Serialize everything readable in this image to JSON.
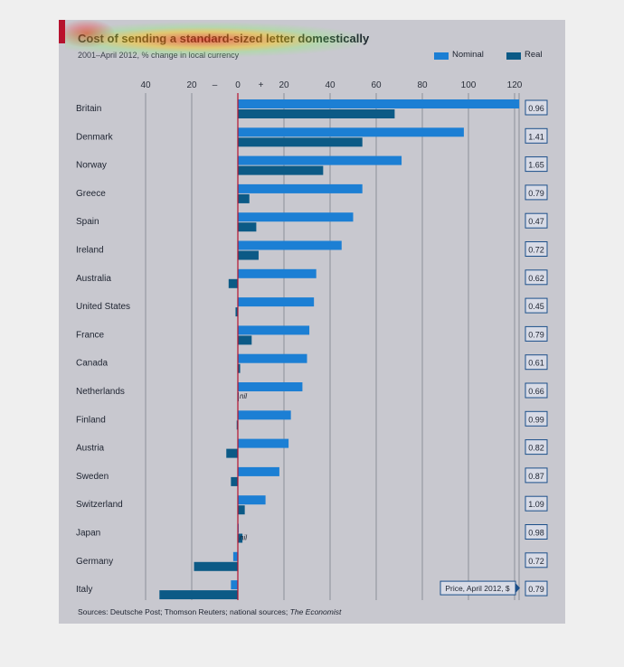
{
  "chart_data": {
    "type": "bar",
    "title": "Cost of sending a standard-sized letter domestically",
    "subtitle": "2001–April 2012, % change in local currency",
    "categories": [
      "Britain",
      "Denmark",
      "Norway",
      "Greece",
      "Spain",
      "Ireland",
      "Australia",
      "United States",
      "France",
      "Canada",
      "Netherlands",
      "Finland",
      "Austria",
      "Sweden",
      "Switzerland",
      "Japan",
      "Germany",
      "Italy"
    ],
    "series": [
      {
        "name": "Nominal",
        "values": [
          122,
          98,
          71,
          54,
          50,
          45,
          34,
          33,
          31,
          30,
          28,
          23,
          22,
          18,
          12,
          0,
          -2,
          -3
        ]
      },
      {
        "name": "Real",
        "values": [
          68,
          54,
          37,
          5,
          8,
          9,
          -4,
          -1,
          6,
          1,
          0,
          -0.5,
          -5,
          -3,
          3,
          2,
          -19,
          -34
        ]
      }
    ],
    "tick_values": [
      -40,
      -20,
      0,
      20,
      40,
      60,
      80,
      100,
      120
    ],
    "tick_labels": [
      "40",
      "20",
      "0",
      "20",
      "40",
      "60",
      "80",
      "100",
      "120"
    ],
    "minus_sign": "–",
    "plus_sign": "+",
    "xlim": [
      -40,
      120
    ],
    "nil_labels": [
      {
        "category": "Netherlands",
        "text": "nil"
      },
      {
        "category": "Japan",
        "text": "nil"
      }
    ],
    "prices": [
      "0.96",
      "1.41",
      "1.65",
      "0.79",
      "0.47",
      "0.72",
      "0.62",
      "0.45",
      "0.79",
      "0.61",
      "0.66",
      "0.99",
      "0.82",
      "0.87",
      "1.09",
      "0.98",
      "0.72",
      "0.79"
    ],
    "price_label": "Price, April 2012, $",
    "legend_placement": "top-right",
    "colors": {
      "nominal": "#1c7fd4",
      "real": "#0c5a86",
      "accent": "#b5122e"
    }
  },
  "source": {
    "prefix": "Sources: Deutsche Post; Thomson Reuters; national sources; ",
    "publication": "The Economist"
  }
}
